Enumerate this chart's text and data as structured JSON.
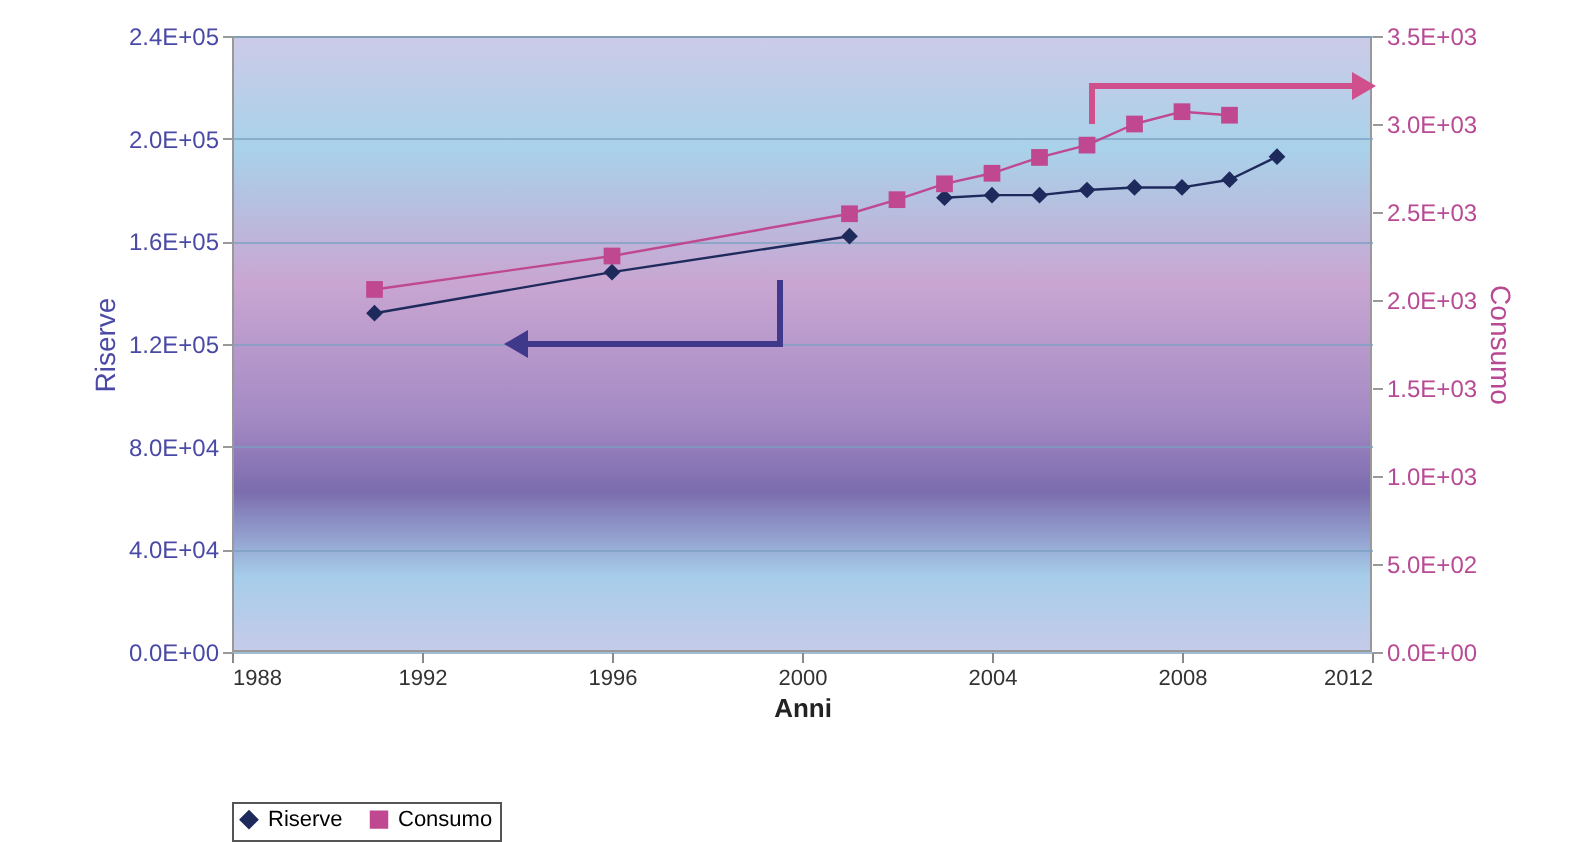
{
  "chart_data": {
    "type": "line",
    "xlabel": "Anni",
    "ylabel": "Riserve",
    "y2label": "Consumo",
    "xlim": [
      1988,
      2012
    ],
    "xticks": [
      1988,
      1992,
      1996,
      2000,
      2004,
      2008,
      2012
    ],
    "ylim": [
      0,
      240000
    ],
    "yticks": [
      {
        "value": 0,
        "label": "0.0E+00"
      },
      {
        "value": 40000,
        "label": "4.0E+04"
      },
      {
        "value": 80000,
        "label": "8.0E+04"
      },
      {
        "value": 120000,
        "label": "1.2E+05"
      },
      {
        "value": 160000,
        "label": "1.6E+05"
      },
      {
        "value": 200000,
        "label": "2.0E+05"
      },
      {
        "value": 240000,
        "label": "2.4E+05"
      }
    ],
    "y2lim": [
      0,
      3500
    ],
    "y2ticks": [
      {
        "value": 0,
        "label": "0.0E+00"
      },
      {
        "value": 500,
        "label": "5.0E+02"
      },
      {
        "value": 1000,
        "label": "1.0E+03"
      },
      {
        "value": 1500,
        "label": "1.5E+03"
      },
      {
        "value": 2000,
        "label": "2.0E+03"
      },
      {
        "value": 2500,
        "label": "2.5E+03"
      },
      {
        "value": 3000,
        "label": "3.0E+03"
      },
      {
        "value": 3500,
        "label": "3.5E+03"
      }
    ],
    "grid": "y",
    "legend": "bottom",
    "series": [
      {
        "name": "Riserve",
        "color": "#1f2a5c",
        "marker": "diamond",
        "x": [
          1991,
          1996,
          2001,
          2002,
          2003,
          2004,
          2005,
          2006,
          2007,
          2008,
          2009,
          2010
        ],
        "values": [
          132000,
          148000,
          162000,
          null,
          177000,
          178000,
          178000,
          180000,
          181000,
          181000,
          184000,
          193000
        ]
      },
      {
        "name": "Consumo",
        "color": "#c04890",
        "marker": "square",
        "axis": "y2",
        "x": [
          1991,
          1996,
          2001,
          2002,
          2003,
          2004,
          2005,
          2006,
          2007,
          2008,
          2009
        ],
        "values": [
          2060,
          2250,
          2490,
          2570,
          2660,
          2720,
          2810,
          2880,
          3000,
          3070,
          3050
        ]
      }
    ]
  }
}
